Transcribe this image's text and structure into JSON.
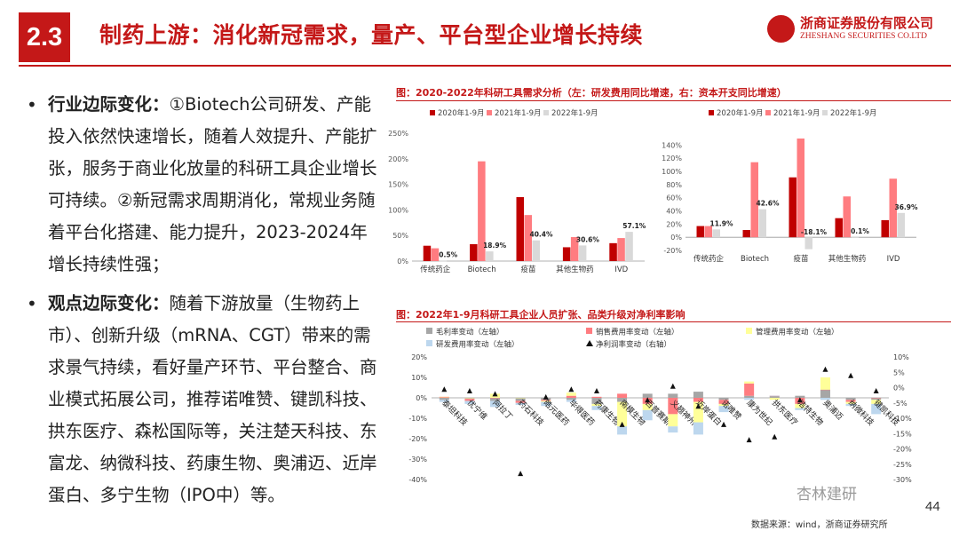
{
  "header": {
    "section_number": "2.3",
    "title": "制药上游：消化新冠需求，量产、平台型企业增长持续",
    "logo_cn": "浙商证券股份有限公司",
    "logo_en": "ZHESHANG SECURITIES CO.LTD"
  },
  "bullets": [
    {
      "lead": "行业边际变化：",
      "text": "①Biotech公司研发、产能投入依然快速增长，随着人效提升、产能扩张，服务于商业化放量的科研工具企业增长可持续。②新冠需求周期消化，常规业务随着平台化搭建、能力提升，2023-2024年增长持续性强；"
    },
    {
      "lead": "观点边际变化：",
      "text": "随着下游放量（生物药上市）、创新升级（mRNA、CGT）带来的需求景气持续，看好量产环节、平台整合、商业模式拓展公司，推荐诺唯赞、键凯科技、拱东医疗、森松国际等，关注楚天科技、东富龙、纳微科技、药康生物、奥浦迈、近岸蛋白、多宁生物（IPO中）等。"
    }
  ],
  "figure1_title": "图：2020-2022年科研工具需求分析（左：研发费用同比增速，右：资本开支同比增速）",
  "figure2_title": "图：2022年1-9月科研工具企业人员扩张、品类升级对净利率影响",
  "footer": {
    "source": "数据来源：wind，浙商证券研究所",
    "page": "44",
    "watermark": "杏林建研"
  },
  "chart_data": [
    {
      "type": "bar",
      "categories": [
        "传统药企",
        "Biotech",
        "疫苗",
        "其他生物药",
        "IVD"
      ],
      "series": [
        {
          "name": "2020年1-9月",
          "color": "#c00000",
          "values": [
            30,
            33,
            125,
            27,
            35
          ]
        },
        {
          "name": "2021年1-9月",
          "color": "#ff7c80",
          "values": [
            25,
            195,
            90,
            47,
            45
          ]
        },
        {
          "name": "2022年1-9月",
          "color": "#d9d9d9",
          "values": [
            0.5,
            18.9,
            40.4,
            30.6,
            57.1
          ]
        }
      ],
      "data_labels": [
        "0.5%",
        "18.9%",
        "40.4%",
        "30.6%",
        "57.1%"
      ],
      "ylim": [
        0,
        250
      ],
      "yticks": [
        "0%",
        "50%",
        "100%",
        "150%",
        "200%",
        "250%"
      ],
      "legend": "top"
    },
    {
      "type": "bar",
      "categories": [
        "传统药企",
        "Biotech",
        "疫苗",
        "其他生物药",
        "IVD"
      ],
      "series": [
        {
          "name": "2020年1-9月",
          "color": "#c00000",
          "values": [
            17,
            11,
            91,
            29,
            26
          ]
        },
        {
          "name": "2021年1-9月",
          "color": "#ff7c80",
          "values": [
            17,
            114,
            150,
            62,
            89
          ]
        },
        {
          "name": "2022年1-9月",
          "color": "#d9d9d9",
          "values": [
            11.9,
            42.6,
            -18.1,
            0.1,
            36.9
          ]
        }
      ],
      "data_labels": [
        "11.9%",
        "42.6%",
        "-18.1%",
        "0.1%",
        "36.9%"
      ],
      "ylim": [
        -20,
        150
      ],
      "yticks": [
        "-20%",
        "0%",
        "20%",
        "40%",
        "60%",
        "80%",
        "100%",
        "120%",
        "140%"
      ],
      "legend": "top"
    },
    {
      "type": "bar",
      "subtype": "stacked-bar-with-markers",
      "categories": [
        "泰坦科技",
        "优宁维",
        "阿拉丁",
        "药石科技",
        "皓元医药",
        "毕得医药",
        "药康生物",
        "南模生物",
        "百普赛斯",
        "义翘神州",
        "近岸蛋白",
        "诺唯赞",
        "康为世纪",
        "拱东医疗",
        "洁特生物",
        "奥浦迈",
        "纳微科技",
        "键凯科技"
      ],
      "series": [
        {
          "name": "毛利率变动（左轴）",
          "color": "#a6a6a6",
          "values": [
            -1,
            -0.5,
            -1.5,
            -1.5,
            -1,
            -1,
            -3,
            -2,
            2,
            2,
            3,
            -1,
            1,
            1,
            1,
            4,
            -1,
            -1
          ]
        },
        {
          "name": "销售费用率变动（左轴）",
          "color": "#ff7c80",
          "values": [
            0.5,
            -1,
            0,
            -1,
            -0.5,
            1,
            0.5,
            2,
            -3,
            -8,
            -2,
            -2,
            6,
            0,
            -3,
            0,
            -1,
            0
          ]
        },
        {
          "name": "管理费用率变动（左轴）",
          "color": "#ffff99",
          "values": [
            0,
            0,
            2,
            0,
            -0.5,
            1.5,
            -1,
            -12,
            -3,
            -6,
            -10,
            -1,
            1,
            -1,
            -2,
            6,
            -1,
            -2
          ]
        },
        {
          "name": "研发费用率变动（左轴）",
          "color": "#bdd7ee",
          "values": [
            -1,
            -1.5,
            -3,
            -1,
            -2,
            -1,
            -2,
            -4,
            -5,
            -3,
            -6,
            -3,
            -1,
            0,
            -1,
            -1,
            -1,
            -5
          ]
        },
        {
          "name": "净利润率变动（右轴）",
          "color": "#111111",
          "marker": "triangle",
          "values": [
            -0.5,
            -1,
            -2,
            -28,
            -3,
            -0.5,
            -1,
            -12,
            -4,
            0.5,
            -6,
            -12,
            -17,
            -16,
            -4,
            6,
            4,
            -1
          ]
        }
      ],
      "ylim_left": [
        -40,
        20
      ],
      "ylim_right": [
        -30,
        10
      ],
      "yticks_left": [
        "-40%",
        "-30%",
        "-20%",
        "-10%",
        "0%",
        "10%",
        "20%"
      ],
      "yticks_right": [
        "-30%",
        "-25%",
        "-20%",
        "-15%",
        "-10%",
        "-5%",
        "0%",
        "5%",
        "10%"
      ],
      "legend": "top"
    }
  ]
}
